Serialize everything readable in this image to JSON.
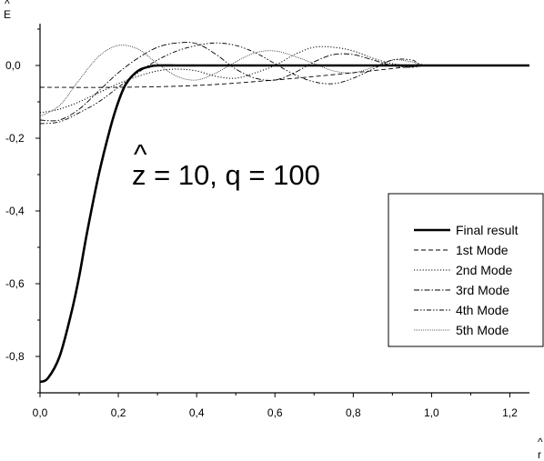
{
  "chart_data": {
    "type": "line",
    "title": "",
    "xlabel": "r",
    "ylabel": "E",
    "xlabel_hat": "^",
    "ylabel_hat": "^",
    "xlim": [
      0,
      1.25
    ],
    "ylim": [
      -0.9,
      0.1
    ],
    "xticks": [
      "0,0",
      "0,2",
      "0,4",
      "0,6",
      "0,8",
      "1,0",
      "1,2"
    ],
    "yticks": [
      "0,0",
      "-0,2",
      "-0,4",
      "-0,6",
      "-0,8"
    ],
    "annotation": {
      "hat": "^",
      "text": "z = 10, q = 100"
    },
    "legend_position": "right",
    "series": [
      {
        "name": "Final result",
        "style": "solid-thick",
        "x": [
          0.0,
          0.02,
          0.05,
          0.08,
          0.1,
          0.12,
          0.15,
          0.18,
          0.2,
          0.22,
          0.25,
          0.28,
          0.3,
          0.35,
          0.4,
          0.5,
          0.6,
          0.8,
          1.0,
          1.25
        ],
        "y": [
          -0.87,
          -0.86,
          -0.8,
          -0.68,
          -0.58,
          -0.46,
          -0.3,
          -0.17,
          -0.1,
          -0.05,
          -0.015,
          -0.003,
          0.0,
          0.0,
          0.0,
          0.0,
          0.0,
          0.0,
          0.0,
          0.0
        ]
      },
      {
        "name": "1st  Mode",
        "style": "dash",
        "x": [
          0.0,
          0.2,
          0.4,
          0.6,
          0.8,
          1.0,
          1.25
        ],
        "y": [
          -0.06,
          -0.06,
          -0.055,
          -0.04,
          -0.02,
          0.0,
          0.0
        ]
      },
      {
        "name": "2nd Mode",
        "style": "dot",
        "x": [
          0.0,
          0.05,
          0.1,
          0.15,
          0.2,
          0.25,
          0.3,
          0.35,
          0.4,
          0.45,
          0.5,
          0.55,
          0.6,
          0.65,
          0.7,
          0.75,
          0.8,
          0.85,
          0.9,
          0.95,
          1.0,
          1.25
        ],
        "y": [
          -0.13,
          -0.12,
          -0.1,
          -0.075,
          -0.05,
          -0.03,
          -0.015,
          -0.01,
          -0.015,
          -0.03,
          -0.035,
          -0.02,
          0.0,
          0.03,
          0.05,
          0.05,
          0.04,
          0.02,
          0.005,
          0.0,
          0.0,
          0.0
        ]
      },
      {
        "name": "3rd Mode",
        "style": "dash-dot",
        "x": [
          0.0,
          0.05,
          0.1,
          0.15,
          0.2,
          0.25,
          0.3,
          0.35,
          0.4,
          0.45,
          0.5,
          0.55,
          0.6,
          0.65,
          0.7,
          0.75,
          0.8,
          0.85,
          0.9,
          0.95,
          1.0,
          1.25
        ],
        "y": [
          -0.15,
          -0.15,
          -0.12,
          -0.07,
          -0.02,
          0.02,
          0.05,
          0.062,
          0.06,
          0.03,
          -0.01,
          -0.035,
          -0.04,
          -0.02,
          0.01,
          0.03,
          0.03,
          0.015,
          0.0,
          -0.005,
          0.0,
          0.0
        ]
      },
      {
        "name": "4th Mode",
        "style": "dash-dot-dot",
        "x": [
          0.0,
          0.05,
          0.1,
          0.15,
          0.2,
          0.25,
          0.3,
          0.35,
          0.4,
          0.45,
          0.5,
          0.55,
          0.6,
          0.65,
          0.7,
          0.75,
          0.8,
          0.85,
          0.9,
          0.95,
          1.0,
          1.25
        ],
        "y": [
          -0.16,
          -0.155,
          -0.13,
          -0.1,
          -0.06,
          -0.02,
          0.015,
          0.04,
          0.055,
          0.062,
          0.055,
          0.035,
          0.005,
          -0.025,
          -0.045,
          -0.05,
          -0.035,
          -0.01,
          0.015,
          0.015,
          0.0,
          0.0
        ]
      },
      {
        "name": "5th Mode",
        "style": "fine-dot",
        "x": [
          0.0,
          0.05,
          0.1,
          0.15,
          0.2,
          0.25,
          0.3,
          0.35,
          0.4,
          0.45,
          0.5,
          0.55,
          0.6,
          0.65,
          0.7,
          0.75,
          0.8,
          0.85,
          0.9,
          0.95,
          1.0,
          1.25
        ],
        "y": [
          -0.14,
          -0.11,
          -0.04,
          0.025,
          0.055,
          0.045,
          0.005,
          -0.03,
          -0.04,
          -0.02,
          0.01,
          0.035,
          0.04,
          0.025,
          0.005,
          -0.015,
          -0.02,
          -0.005,
          0.015,
          0.01,
          0.0,
          0.0
        ]
      }
    ]
  }
}
